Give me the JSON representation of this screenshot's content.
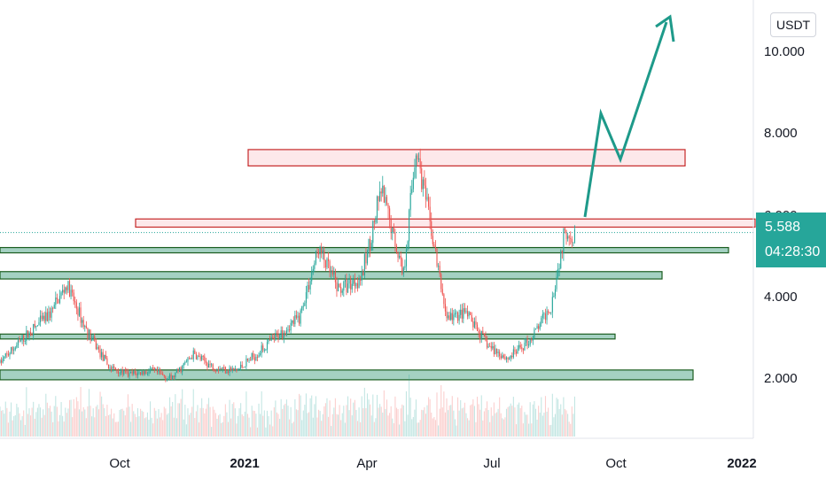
{
  "currency": "USDT",
  "last_price": "5.588",
  "countdown": "04:28:30",
  "colors": {
    "up": "#26a69a",
    "down": "#ef5350",
    "support_fill": "#9fcfbf",
    "support_edge": "#1b5e20",
    "resistance_fill": "#fde6e8",
    "resistance_edge": "#c62828",
    "arrow": "#1e9a8a"
  },
  "chart_data": {
    "type": "candlestick",
    "y_axis": {
      "ticks": [
        "2.000",
        "4.000",
        "6.000",
        "8.000",
        "10.000"
      ],
      "scale": "linear"
    },
    "x_axis": {
      "ticks": [
        {
          "label": "Oct",
          "bold": false
        },
        {
          "label": "2021",
          "bold": true
        },
        {
          "label": "Apr",
          "bold": false
        },
        {
          "label": "Jul",
          "bold": false
        },
        {
          "label": "Oct",
          "bold": false
        },
        {
          "label": "2022",
          "bold": true
        }
      ]
    },
    "price_path": [
      [
        "2020-07-15",
        2.4
      ],
      [
        "2020-08-01",
        3.0
      ],
      [
        "2020-08-20",
        3.6
      ],
      [
        "2020-09-01",
        4.3
      ],
      [
        "2020-09-15",
        3.2
      ],
      [
        "2020-10-01",
        2.3
      ],
      [
        "2020-10-15",
        2.1
      ],
      [
        "2020-11-01",
        2.2
      ],
      [
        "2020-11-15",
        2.0
      ],
      [
        "2020-12-01",
        2.6
      ],
      [
        "2020-12-15",
        2.3
      ],
      [
        "2021-01-01",
        2.2
      ],
      [
        "2021-01-15",
        2.6
      ],
      [
        "2021-02-01",
        3.1
      ],
      [
        "2021-02-15",
        3.5
      ],
      [
        "2021-03-01",
        5.2
      ],
      [
        "2021-03-15",
        4.2
      ],
      [
        "2021-04-01",
        4.5
      ],
      [
        "2021-04-15",
        6.6
      ],
      [
        "2021-05-01",
        4.6
      ],
      [
        "2021-05-10",
        7.7
      ],
      [
        "2021-05-20",
        5.8
      ],
      [
        "2021-06-01",
        3.5
      ],
      [
        "2021-06-15",
        3.6
      ],
      [
        "2021-07-01",
        2.8
      ],
      [
        "2021-07-15",
        2.5
      ],
      [
        "2021-08-01",
        3.0
      ],
      [
        "2021-08-15",
        3.8
      ],
      [
        "2021-08-25",
        5.6
      ],
      [
        "2021-09-01",
        5.6
      ]
    ],
    "last_price": 5.588,
    "zones": [
      {
        "kind": "resistance",
        "low": 7.22,
        "high": 7.62
      },
      {
        "kind": "resistance",
        "low": 5.72,
        "high": 5.92
      },
      {
        "kind": "support",
        "low": 5.09,
        "high": 5.22
      },
      {
        "kind": "support",
        "low": 4.45,
        "high": 4.63
      },
      {
        "kind": "support",
        "low": 2.98,
        "high": 3.1
      },
      {
        "kind": "support",
        "low": 1.98,
        "high": 2.22
      }
    ],
    "projection": [
      [
        "2021-09-01",
        5.8
      ],
      [
        "2021-09-20",
        8.4
      ],
      [
        "2021-10-10",
        7.2
      ],
      [
        "2021-11-15",
        11.0
      ]
    ]
  }
}
